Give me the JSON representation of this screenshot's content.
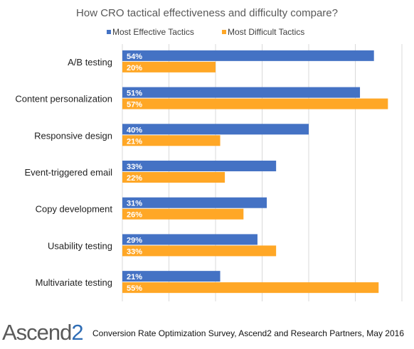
{
  "chart_data": {
    "type": "bar",
    "orientation": "horizontal",
    "title": "How CRO tactical effectiveness and difficulty compare?",
    "categories": [
      "A/B testing",
      "Content personalization",
      "Responsive design",
      "Event-triggered email",
      "Copy development",
      "Usability testing",
      "Multivariate testing"
    ],
    "series": [
      {
        "name": "Most Effective Tactics",
        "values": [
          54,
          51,
          40,
          33,
          31,
          29,
          21
        ],
        "color": "#4472c4"
      },
      {
        "name": "Most Difficult Tactics",
        "values": [
          20,
          57,
          21,
          22,
          26,
          33,
          55
        ],
        "color": "#ffa726"
      }
    ],
    "value_format": "percent",
    "xlim": [
      0,
      60
    ],
    "grid": true,
    "legend_position": "top"
  },
  "footer": {
    "logo_text": "Ascend",
    "logo_number": "2",
    "source": "Conversion Rate Optimization Survey, Ascend2 and Research Partners, May 2016"
  }
}
